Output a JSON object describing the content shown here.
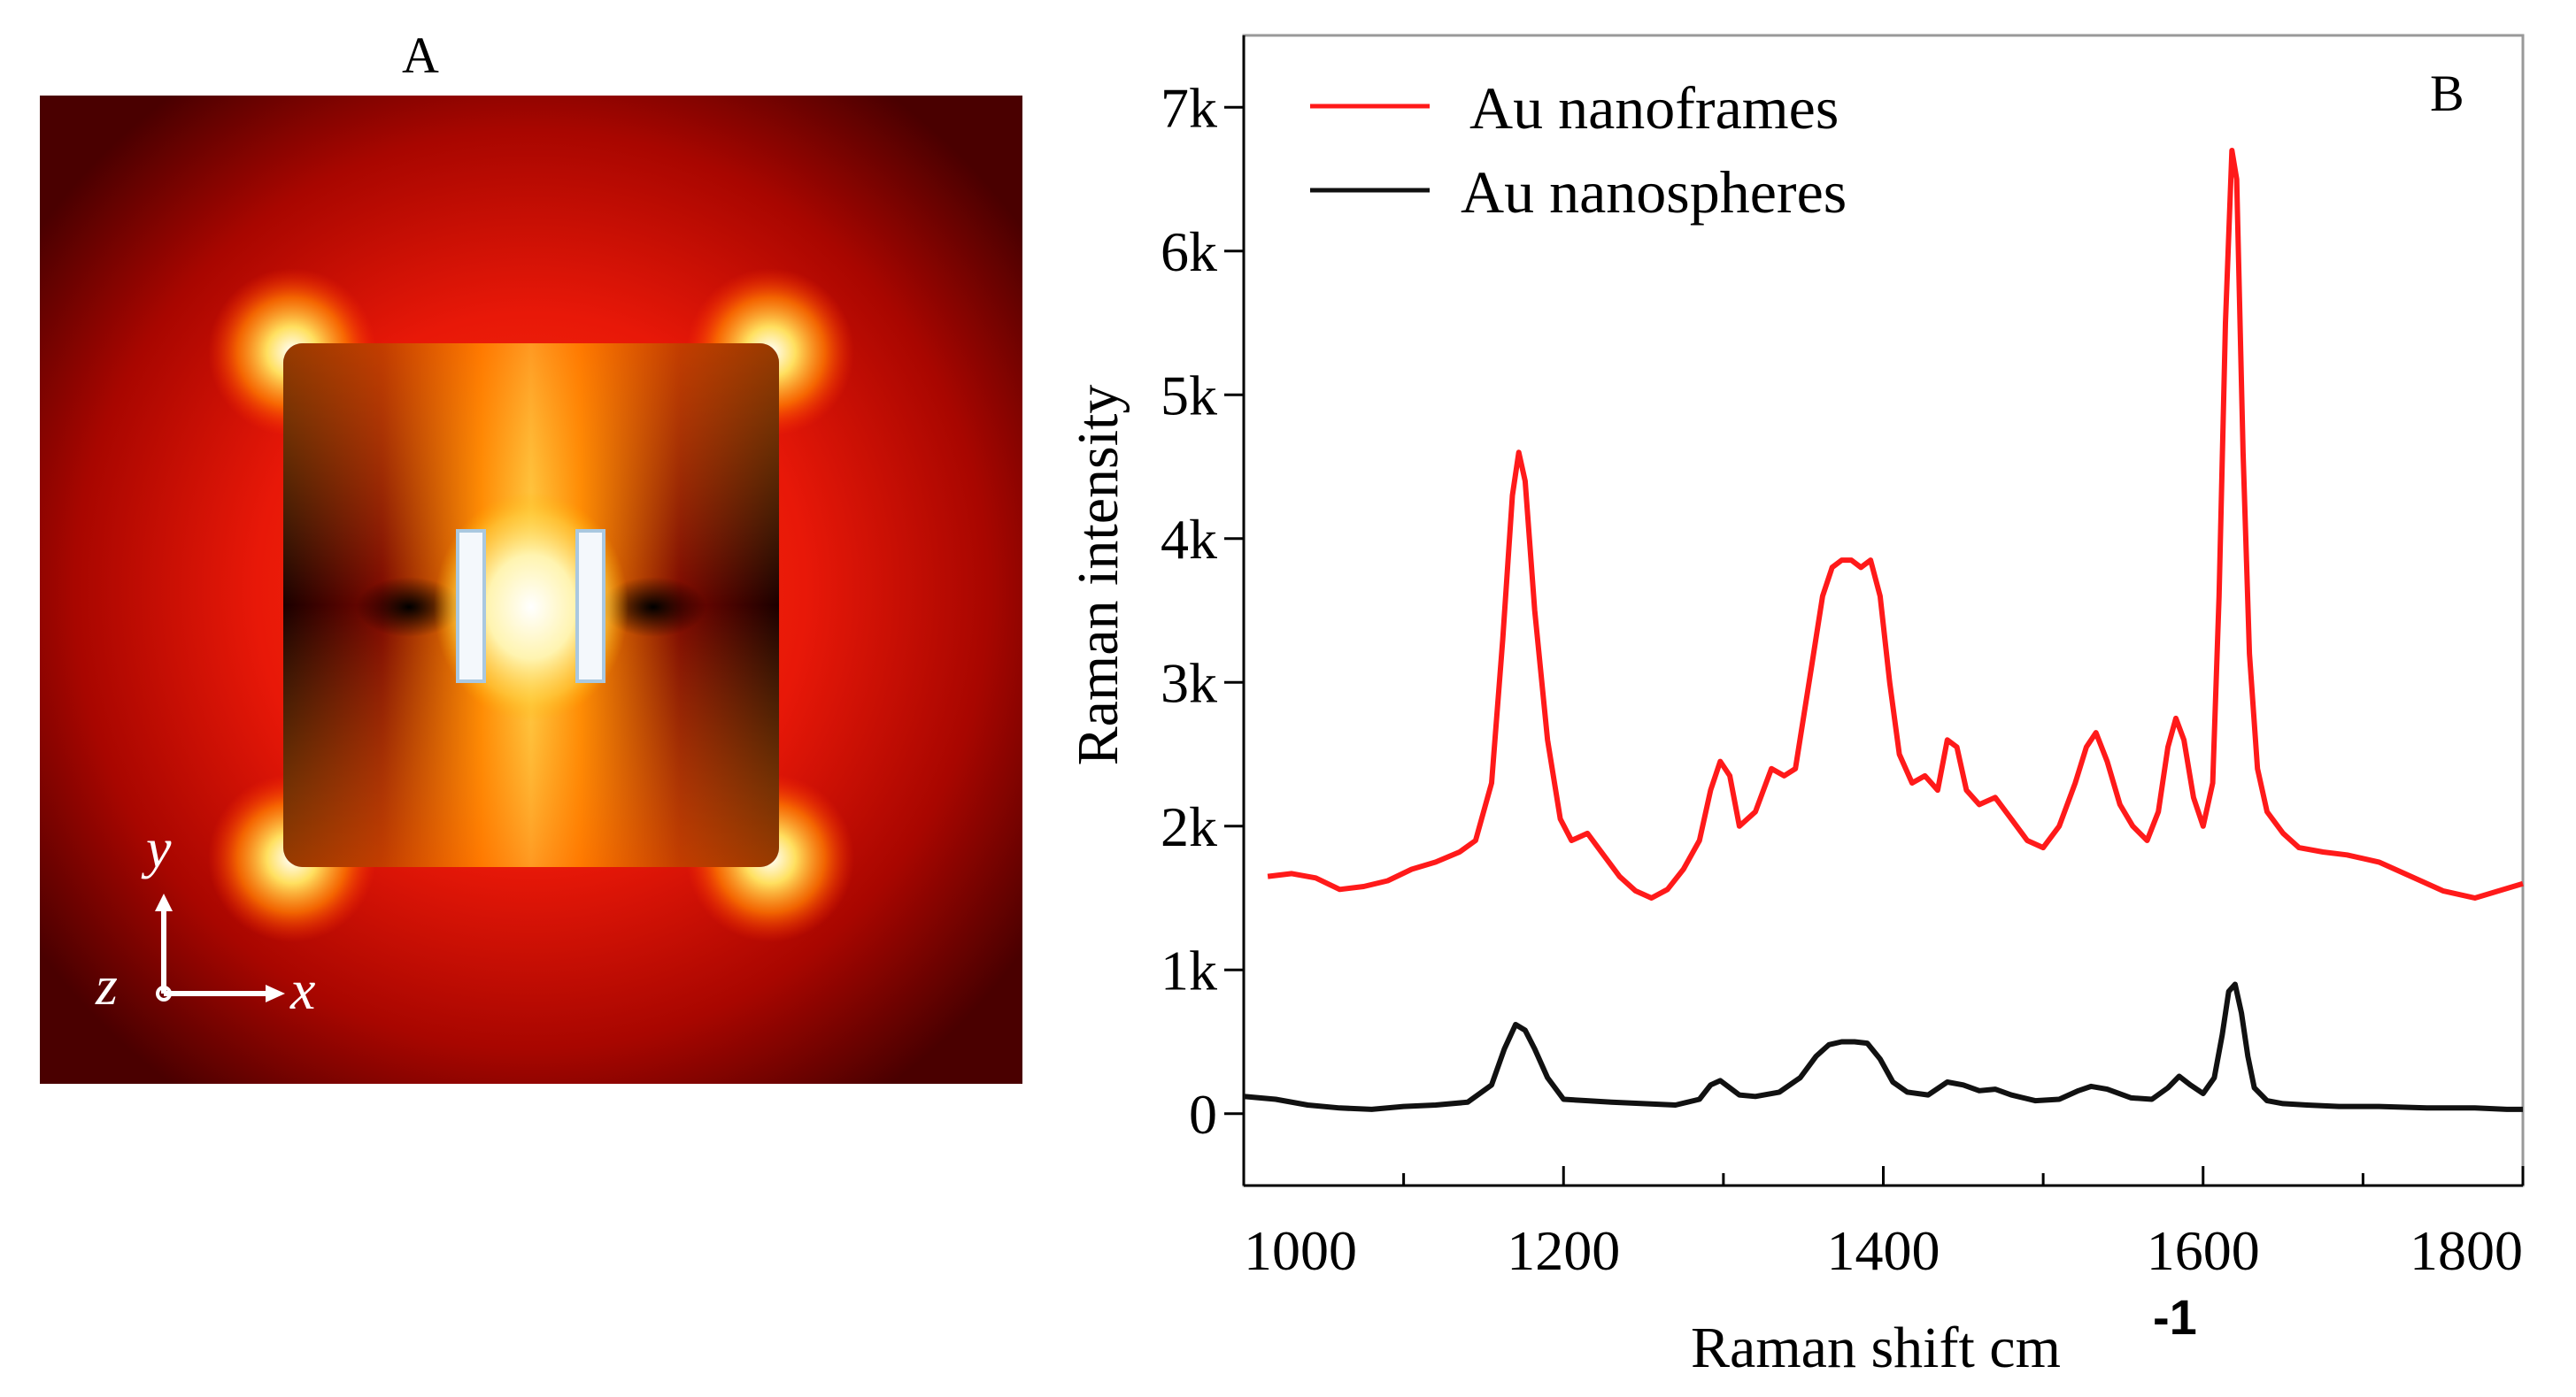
{
  "panel_a": {
    "label": "A",
    "axes": {
      "y": "y",
      "z": "z",
      "x": "x"
    },
    "colors": {
      "outer": "#5a0000",
      "mid": "#e02008",
      "hot": "#ffffff",
      "glow": "#ff8c00",
      "frame_edge": "#a9c8e0"
    }
  },
  "panel_b": {
    "label": "B"
  },
  "chart_data": {
    "type": "line",
    "xlabel": "Raman shift cm",
    "xlabel_superscript": "-1",
    "ylabel": "Raman intensity",
    "xlim": [
      1000,
      1800
    ],
    "ylim": [
      -500,
      7500
    ],
    "x_ticks": [
      1000,
      1200,
      1400,
      1600,
      1800
    ],
    "x_minor_ticks": [
      1100,
      1300,
      1500,
      1700
    ],
    "y_ticks": [
      0,
      1000,
      2000,
      3000,
      4000,
      5000,
      6000,
      7000
    ],
    "y_tick_labels": [
      "0",
      "1k",
      "2k",
      "3k",
      "4k",
      "5k",
      "6k",
      "7k"
    ],
    "grid": false,
    "legend_position": "top-left",
    "series": [
      {
        "name": "Au nanoframes",
        "color": "#ff1a1a",
        "x": [
          1015,
          1030,
          1045,
          1060,
          1075,
          1090,
          1105,
          1120,
          1135,
          1145,
          1155,
          1162,
          1168,
          1172,
          1176,
          1182,
          1190,
          1198,
          1205,
          1215,
          1225,
          1235,
          1245,
          1255,
          1265,
          1275,
          1285,
          1292,
          1298,
          1304,
          1310,
          1320,
          1330,
          1338,
          1345,
          1355,
          1362,
          1368,
          1374,
          1380,
          1386,
          1392,
          1398,
          1404,
          1410,
          1418,
          1426,
          1434,
          1440,
          1446,
          1452,
          1460,
          1470,
          1480,
          1490,
          1500,
          1510,
          1520,
          1527,
          1533,
          1540,
          1548,
          1556,
          1565,
          1572,
          1578,
          1583,
          1588,
          1594,
          1600,
          1606,
          1610,
          1614,
          1618,
          1621,
          1625,
          1629,
          1634,
          1640,
          1650,
          1660,
          1675,
          1690,
          1710,
          1730,
          1750,
          1770,
          1785,
          1800
        ],
        "values": [
          1650,
          1670,
          1640,
          1560,
          1580,
          1620,
          1700,
          1750,
          1820,
          1900,
          2300,
          3300,
          4300,
          4600,
          4400,
          3500,
          2600,
          2050,
          1900,
          1950,
          1800,
          1650,
          1550,
          1500,
          1560,
          1700,
          1900,
          2250,
          2450,
          2350,
          2000,
          2100,
          2400,
          2350,
          2400,
          3100,
          3600,
          3800,
          3850,
          3850,
          3800,
          3850,
          3600,
          3000,
          2500,
          2300,
          2350,
          2250,
          2600,
          2550,
          2250,
          2150,
          2200,
          2050,
          1900,
          1850,
          2000,
          2300,
          2550,
          2650,
          2450,
          2150,
          2000,
          1900,
          2100,
          2550,
          2750,
          2600,
          2200,
          2000,
          2300,
          3600,
          5500,
          6700,
          6500,
          4600,
          3200,
          2400,
          2100,
          1950,
          1850,
          1820,
          1800,
          1750,
          1650,
          1550,
          1500,
          1550,
          1600
        ]
      },
      {
        "name": "Au nanospheres",
        "color": "#111111",
        "x": [
          1000,
          1020,
          1040,
          1060,
          1080,
          1100,
          1120,
          1140,
          1155,
          1163,
          1170,
          1176,
          1182,
          1190,
          1200,
          1215,
          1230,
          1250,
          1270,
          1285,
          1292,
          1298,
          1304,
          1310,
          1320,
          1335,
          1348,
          1358,
          1366,
          1374,
          1382,
          1390,
          1398,
          1406,
          1415,
          1428,
          1440,
          1450,
          1460,
          1470,
          1480,
          1495,
          1510,
          1522,
          1530,
          1540,
          1555,
          1568,
          1578,
          1585,
          1592,
          1600,
          1607,
          1612,
          1616,
          1620,
          1624,
          1628,
          1632,
          1640,
          1650,
          1665,
          1685,
          1710,
          1740,
          1770,
          1790,
          1800
        ],
        "values": [
          120,
          100,
          60,
          40,
          30,
          50,
          60,
          80,
          200,
          450,
          620,
          580,
          450,
          250,
          100,
          90,
          80,
          70,
          60,
          100,
          200,
          230,
          180,
          130,
          120,
          150,
          250,
          400,
          480,
          500,
          500,
          490,
          380,
          220,
          150,
          130,
          220,
          200,
          160,
          170,
          130,
          90,
          100,
          160,
          190,
          170,
          110,
          100,
          180,
          260,
          200,
          140,
          250,
          550,
          850,
          900,
          700,
          400,
          180,
          90,
          70,
          60,
          50,
          50,
          40,
          40,
          30,
          30
        ]
      }
    ]
  }
}
